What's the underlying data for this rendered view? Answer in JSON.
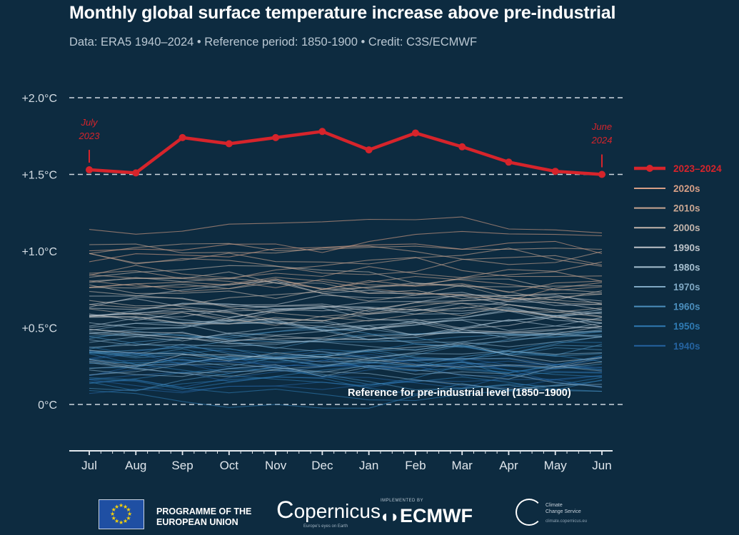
{
  "header": {
    "title": "Monthly global surface temperature increase above pre-industrial",
    "subtitle": "Data: ERA5 1940–2024 • Reference period: 1850-1900 • Credit: C3S/ECMWF"
  },
  "chart_data": {
    "type": "line",
    "categories": [
      "Jul",
      "Aug",
      "Sep",
      "Oct",
      "Nov",
      "Dec",
      "Jan",
      "Feb",
      "Mar",
      "Apr",
      "May",
      "Jun"
    ],
    "ylim": [
      -0.3,
      2.0
    ],
    "yticks": [
      {
        "value": 2.0,
        "label": "+2.0°C"
      },
      {
        "value": 1.5,
        "label": "+1.5°C"
      },
      {
        "value": 1.0,
        "label": "+1.0°C"
      },
      {
        "value": 0.5,
        "label": "+0.5°C"
      },
      {
        "value": 0.0,
        "label": "0°C"
      }
    ],
    "dashed_reference_lines": [
      2.0,
      1.5,
      0.0
    ],
    "reference_label": "Reference for pre-industrial level (1850–1900)",
    "highlight": {
      "name": "2023–2024",
      "color": "#d6242b",
      "values": [
        1.53,
        1.51,
        1.74,
        1.7,
        1.74,
        1.78,
        1.66,
        1.77,
        1.68,
        1.58,
        1.52,
        1.5
      ],
      "start_annotation": [
        "July",
        "2023"
      ],
      "end_annotation": [
        "June",
        "2024"
      ]
    },
    "decades": [
      {
        "name": "2020s",
        "color": "#d79f86",
        "base": 1.05,
        "count": 3
      },
      {
        "name": "2010s",
        "color": "#c9a692",
        "base": 0.9,
        "count": 10
      },
      {
        "name": "2000s",
        "color": "#c2b4ab",
        "base": 0.72,
        "count": 10
      },
      {
        "name": "1990s",
        "color": "#bcc2c8",
        "base": 0.56,
        "count": 10
      },
      {
        "name": "1980s",
        "color": "#a6bfcf",
        "base": 0.45,
        "count": 10
      },
      {
        "name": "1970s",
        "color": "#7fa8c3",
        "base": 0.32,
        "count": 10
      },
      {
        "name": "1960s",
        "color": "#4b8ebc",
        "base": 0.28,
        "count": 10
      },
      {
        "name": "1950s",
        "color": "#2f7ab2",
        "base": 0.22,
        "count": 10
      },
      {
        "name": "1940s",
        "color": "#2563a0",
        "base": 0.25,
        "count": 10
      }
    ]
  },
  "footer": {
    "eu_line1": "PROGRAMME OF THE",
    "eu_line2": "EUROPEAN UNION",
    "copernicus": "opernicus",
    "copernicus_sub": "Europe's eyes on Earth",
    "ecmwf_small": "IMPLEMENTED BY",
    "ecmwf": "ECMWF",
    "c3s_line1": "Climate",
    "c3s_line2": "Change Service",
    "c3s_url": "climate.copernicus.eu"
  }
}
